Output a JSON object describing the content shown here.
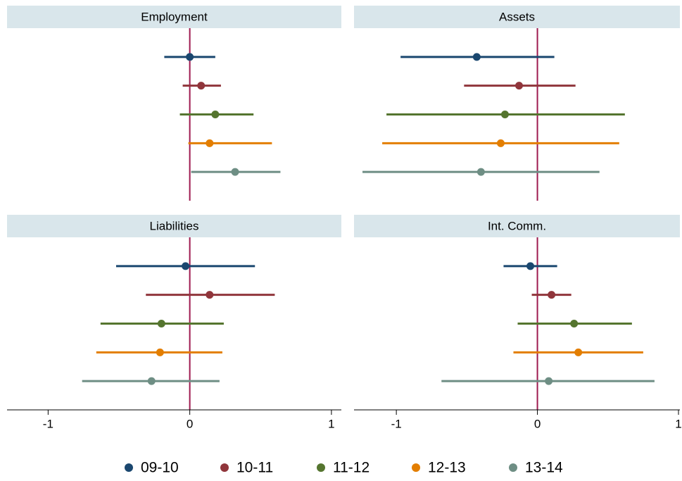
{
  "chart_data": {
    "type": "dot-whisker",
    "series": [
      {
        "name": "09-10",
        "color": "#1a476f"
      },
      {
        "name": "10-11",
        "color": "#90353b"
      },
      {
        "name": "11-12",
        "color": "#55752f"
      },
      {
        "name": "12-13",
        "color": "#e37e00"
      },
      {
        "name": "13-14",
        "color": "#6e8e84"
      }
    ],
    "reference_line": 0,
    "reference_color": "#9e1a4f",
    "panels": [
      {
        "title": "Employment",
        "xlim": [
          -1.29,
          1.07
        ],
        "estimates": [
          0.0,
          0.08,
          0.18,
          0.14,
          0.32
        ],
        "ci_low": [
          -0.18,
          -0.05,
          -0.07,
          -0.01,
          0.01
        ],
        "ci_high": [
          0.18,
          0.22,
          0.45,
          0.58,
          0.64
        ]
      },
      {
        "title": "Assets",
        "xlim": [
          -1.3,
          1.01
        ],
        "estimates": [
          -0.43,
          -0.13,
          -0.23,
          -0.26,
          -0.4
        ],
        "ci_low": [
          -0.97,
          -0.52,
          -1.07,
          -1.1,
          -1.24
        ],
        "ci_high": [
          0.12,
          0.27,
          0.62,
          0.58,
          0.44
        ]
      },
      {
        "title": "Liabilities",
        "xlim": [
          -1.29,
          1.07
        ],
        "xticks": [
          -1,
          0,
          1
        ],
        "estimates": [
          -0.03,
          0.14,
          -0.2,
          -0.21,
          -0.27
        ],
        "ci_low": [
          -0.52,
          -0.31,
          -0.63,
          -0.66,
          -0.76
        ],
        "ci_high": [
          0.46,
          0.6,
          0.24,
          0.23,
          0.21
        ]
      },
      {
        "title": "Int. Comm.",
        "xlim": [
          -1.3,
          1.01
        ],
        "xticks": [
          -1,
          0,
          1
        ],
        "estimates": [
          -0.05,
          0.1,
          0.26,
          0.29,
          0.08
        ],
        "ci_low": [
          -0.24,
          -0.04,
          -0.14,
          -0.17,
          -0.68
        ],
        "ci_high": [
          0.14,
          0.24,
          0.67,
          0.75,
          0.83
        ]
      }
    ]
  }
}
